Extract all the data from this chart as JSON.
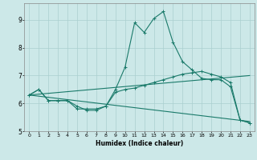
{
  "xlabel": "Humidex (Indice chaleur)",
  "ylabel": "",
  "background_color": "#cce8e8",
  "grid_color": "#aacfcf",
  "line_color": "#1a7a6a",
  "xlim": [
    -0.5,
    23.5
  ],
  "ylim": [
    5.0,
    9.6
  ],
  "yticks": [
    5,
    6,
    7,
    8,
    9
  ],
  "xticks": [
    0,
    1,
    2,
    3,
    4,
    5,
    6,
    7,
    8,
    9,
    10,
    11,
    12,
    13,
    14,
    15,
    16,
    17,
    18,
    19,
    20,
    21,
    22,
    23
  ],
  "series": {
    "line1_x": [
      0,
      1,
      2,
      3,
      4,
      5,
      6,
      7,
      8,
      9,
      10,
      11,
      12,
      13,
      14,
      15,
      16,
      17,
      18,
      19,
      20,
      21,
      22,
      23
    ],
    "line1_y": [
      6.3,
      6.5,
      6.1,
      6.1,
      6.1,
      5.9,
      5.75,
      5.75,
      5.9,
      6.5,
      7.3,
      8.9,
      8.55,
      9.05,
      9.3,
      8.2,
      7.5,
      7.2,
      6.9,
      6.85,
      6.85,
      6.6,
      5.4,
      5.3
    ],
    "line2_x": [
      0,
      1,
      2,
      3,
      4,
      5,
      6,
      7,
      8,
      9,
      10,
      11,
      12,
      13,
      14,
      15,
      16,
      17,
      18,
      19,
      20,
      21,
      22,
      23
    ],
    "line2_y": [
      6.3,
      6.5,
      6.1,
      6.1,
      6.1,
      5.8,
      5.8,
      5.8,
      5.9,
      6.4,
      6.5,
      6.55,
      6.65,
      6.75,
      6.85,
      6.95,
      7.05,
      7.1,
      7.15,
      7.05,
      6.95,
      6.75,
      5.4,
      5.3
    ],
    "line3_x": [
      0,
      23
    ],
    "line3_y": [
      6.3,
      5.35
    ],
    "line4_x": [
      0,
      23
    ],
    "line4_y": [
      6.3,
      7.0
    ]
  }
}
